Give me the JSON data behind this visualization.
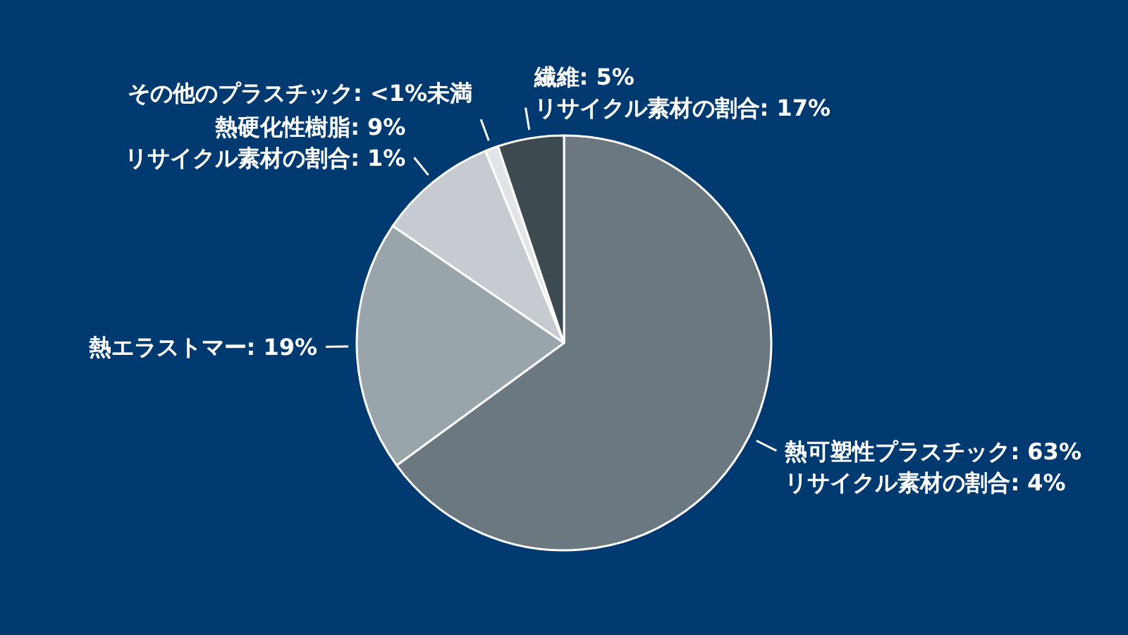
{
  "chart_data": {
    "type": "pie",
    "categories": [
      "熱可塑性プラスチック",
      "熱エラストマー",
      "熱硬化性樹脂",
      "その他のプラスチック",
      "繊維"
    ],
    "values": [
      63,
      19,
      9,
      1,
      5
    ],
    "value_labels": [
      "63%",
      "19%",
      "9%",
      "<1%未満",
      "5%"
    ],
    "colors": [
      "#6b7880",
      "#9aa5ab",
      "#c5cbd0",
      "#e2e5e8",
      "#3d4a4f"
    ],
    "annotations": [
      {
        "text": "リサイクル素材の割合: 4%",
        "x": "熱可塑性プラスチック"
      },
      {
        "text": "リサイクル素材の割合: 1%",
        "x": "熱硬化性樹脂"
      },
      {
        "text": "リサイクル素材の割合: 17%",
        "x": "繊維"
      }
    ],
    "legend": false
  }
}
